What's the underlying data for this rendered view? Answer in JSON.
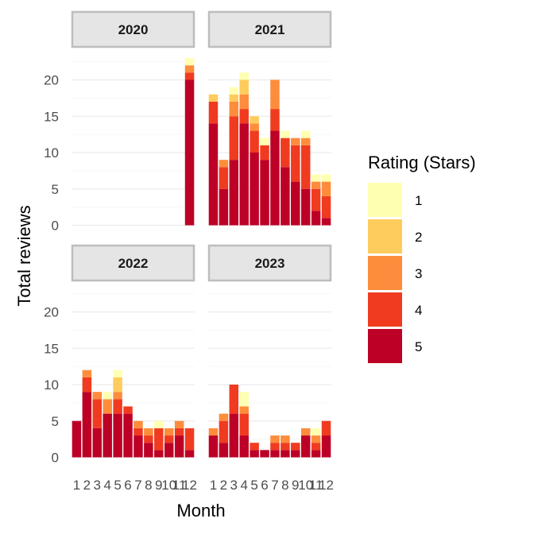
{
  "chart_data": {
    "type": "bar",
    "stacked": true,
    "facet_by": "year",
    "ylabel": "Total reviews",
    "xlabel": "Month",
    "ylim": [
      0,
      23.5
    ],
    "yticks": [
      0,
      5,
      10,
      15,
      20
    ],
    "grid": true,
    "legend": {
      "title": "Rating (Stars)",
      "position": "right",
      "entries": [
        {
          "label": "1",
          "color": "#FFFFB2"
        },
        {
          "label": "2",
          "color": "#FECC5C"
        },
        {
          "label": "3",
          "color": "#FD8D3C"
        },
        {
          "label": "4",
          "color": "#F03B20"
        },
        {
          "label": "5",
          "color": "#BD0026"
        }
      ]
    },
    "categories": [
      "1",
      "2",
      "3",
      "4",
      "5",
      "6",
      "7",
      "8",
      "9",
      "10",
      "11",
      "12"
    ],
    "panels": [
      {
        "label": "2020",
        "counts": [
          [
            0,
            0,
            0,
            0,
            0
          ],
          [
            0,
            0,
            0,
            0,
            0
          ],
          [
            0,
            0,
            0,
            0,
            0
          ],
          [
            0,
            0,
            0,
            0,
            0
          ],
          [
            0,
            0,
            0,
            0,
            0
          ],
          [
            0,
            0,
            0,
            0,
            0
          ],
          [
            0,
            0,
            0,
            0,
            0
          ],
          [
            0,
            0,
            0,
            0,
            0
          ],
          [
            0,
            0,
            0,
            0,
            0
          ],
          [
            0,
            0,
            0,
            0,
            0
          ],
          [
            0,
            0,
            0,
            0,
            0
          ],
          [
            20,
            1,
            1,
            0,
            1
          ]
        ]
      },
      {
        "label": "2021",
        "counts": [
          [
            14,
            3,
            0,
            1,
            0
          ],
          [
            5,
            3,
            1,
            0,
            0
          ],
          [
            9,
            6,
            2,
            1,
            1
          ],
          [
            14,
            2,
            2,
            2,
            1
          ],
          [
            10,
            3,
            1,
            1,
            0
          ],
          [
            9,
            2,
            0,
            0,
            1
          ],
          [
            13,
            3,
            4,
            0,
            0
          ],
          [
            8,
            4,
            0,
            0,
            1
          ],
          [
            6,
            5,
            1,
            0,
            0
          ],
          [
            5,
            6,
            1,
            0,
            1
          ],
          [
            2,
            3,
            1,
            0,
            1
          ],
          [
            1,
            3,
            2,
            0,
            1
          ]
        ]
      },
      {
        "label": "2022",
        "counts": [
          [
            5,
            0,
            0,
            0,
            0
          ],
          [
            9,
            2,
            1,
            0,
            0
          ],
          [
            4,
            4,
            1,
            0,
            0
          ],
          [
            6,
            0,
            2,
            0,
            1
          ],
          [
            6,
            2,
            1,
            2,
            1
          ],
          [
            6,
            1,
            0,
            0,
            0
          ],
          [
            3,
            1,
            1,
            0,
            0
          ],
          [
            2,
            1,
            1,
            0,
            0
          ],
          [
            1,
            3,
            0,
            0,
            1
          ],
          [
            2,
            1,
            1,
            0,
            0
          ],
          [
            3,
            1,
            1,
            0,
            0
          ],
          [
            1,
            3,
            0,
            0,
            0
          ]
        ]
      },
      {
        "label": "2023",
        "counts": [
          [
            3,
            0,
            1,
            0,
            0
          ],
          [
            2,
            3,
            1,
            0,
            0
          ],
          [
            6,
            4,
            0,
            0,
            0
          ],
          [
            3,
            3,
            1,
            0,
            2
          ],
          [
            1,
            1,
            0,
            0,
            0
          ],
          [
            1,
            0,
            0,
            0,
            0
          ],
          [
            1,
            1,
            1,
            0,
            0
          ],
          [
            1,
            1,
            1,
            0,
            0
          ],
          [
            1,
            1,
            0,
            0,
            0
          ],
          [
            3,
            0,
            1,
            0,
            0
          ],
          [
            1,
            1,
            1,
            0,
            1
          ],
          [
            3,
            2,
            0,
            0,
            0
          ]
        ]
      }
    ]
  }
}
